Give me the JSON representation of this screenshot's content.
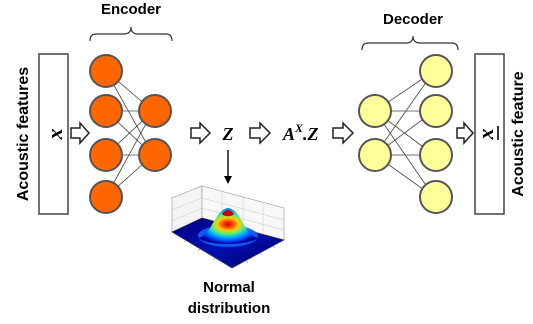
{
  "encoder": {
    "title": "Encoder",
    "input_layer_nodes": 4,
    "output_layer_nodes": 2,
    "node_color": "#ff6600",
    "node_stroke": "#555555"
  },
  "decoder": {
    "title": "Decoder",
    "input_layer_nodes": 2,
    "output_layer_nodes": 4,
    "node_color": "#ffff99",
    "node_stroke": "#555555"
  },
  "input_box": {
    "label": "Acoustic features",
    "symbol": "x"
  },
  "output_box": {
    "label": "Acoustic feature",
    "symbol": "x"
  },
  "latent": {
    "symbol": "Z",
    "transform_base": "A",
    "transform_superscript": "X",
    "transform_suffix": ".Z"
  },
  "distribution": {
    "line1": "Normal",
    "line2": "distribution",
    "colors": [
      "#00008b",
      "#0033ff",
      "#00aaff",
      "#33dd88",
      "#ccee22",
      "#ffaa00",
      "#ff2200",
      "#cc0000"
    ]
  },
  "icons": {
    "arrow": "hollow-right-arrow-icon",
    "down_arrow": "down-arrow-icon"
  }
}
